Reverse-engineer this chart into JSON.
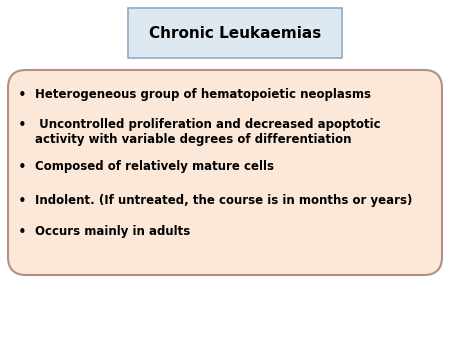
{
  "title": "Chronic Leukaemias",
  "title_box_facecolor": "#dde8f0",
  "title_box_edgecolor": "#8caccc",
  "title_fontsize": 11,
  "title_fontweight": "bold",
  "bullet_items": [
    "Heterogeneous group of hematopoietic neoplasms",
    " Uncontrolled proliferation and decreased apoptotic\nactivity with variable degrees of differentiation",
    "Composed of relatively mature cells",
    "Indolent. (If untreated, the course is in months or years)",
    "Occurs mainly in adults"
  ],
  "bullet_fontsize": 8.5,
  "bullet_box_facecolor": "#fce8d8",
  "bullet_box_edgecolor": "#b09080",
  "background_color": "#ffffff",
  "fig_width": 4.5,
  "fig_height": 3.38,
  "dpi": 100
}
